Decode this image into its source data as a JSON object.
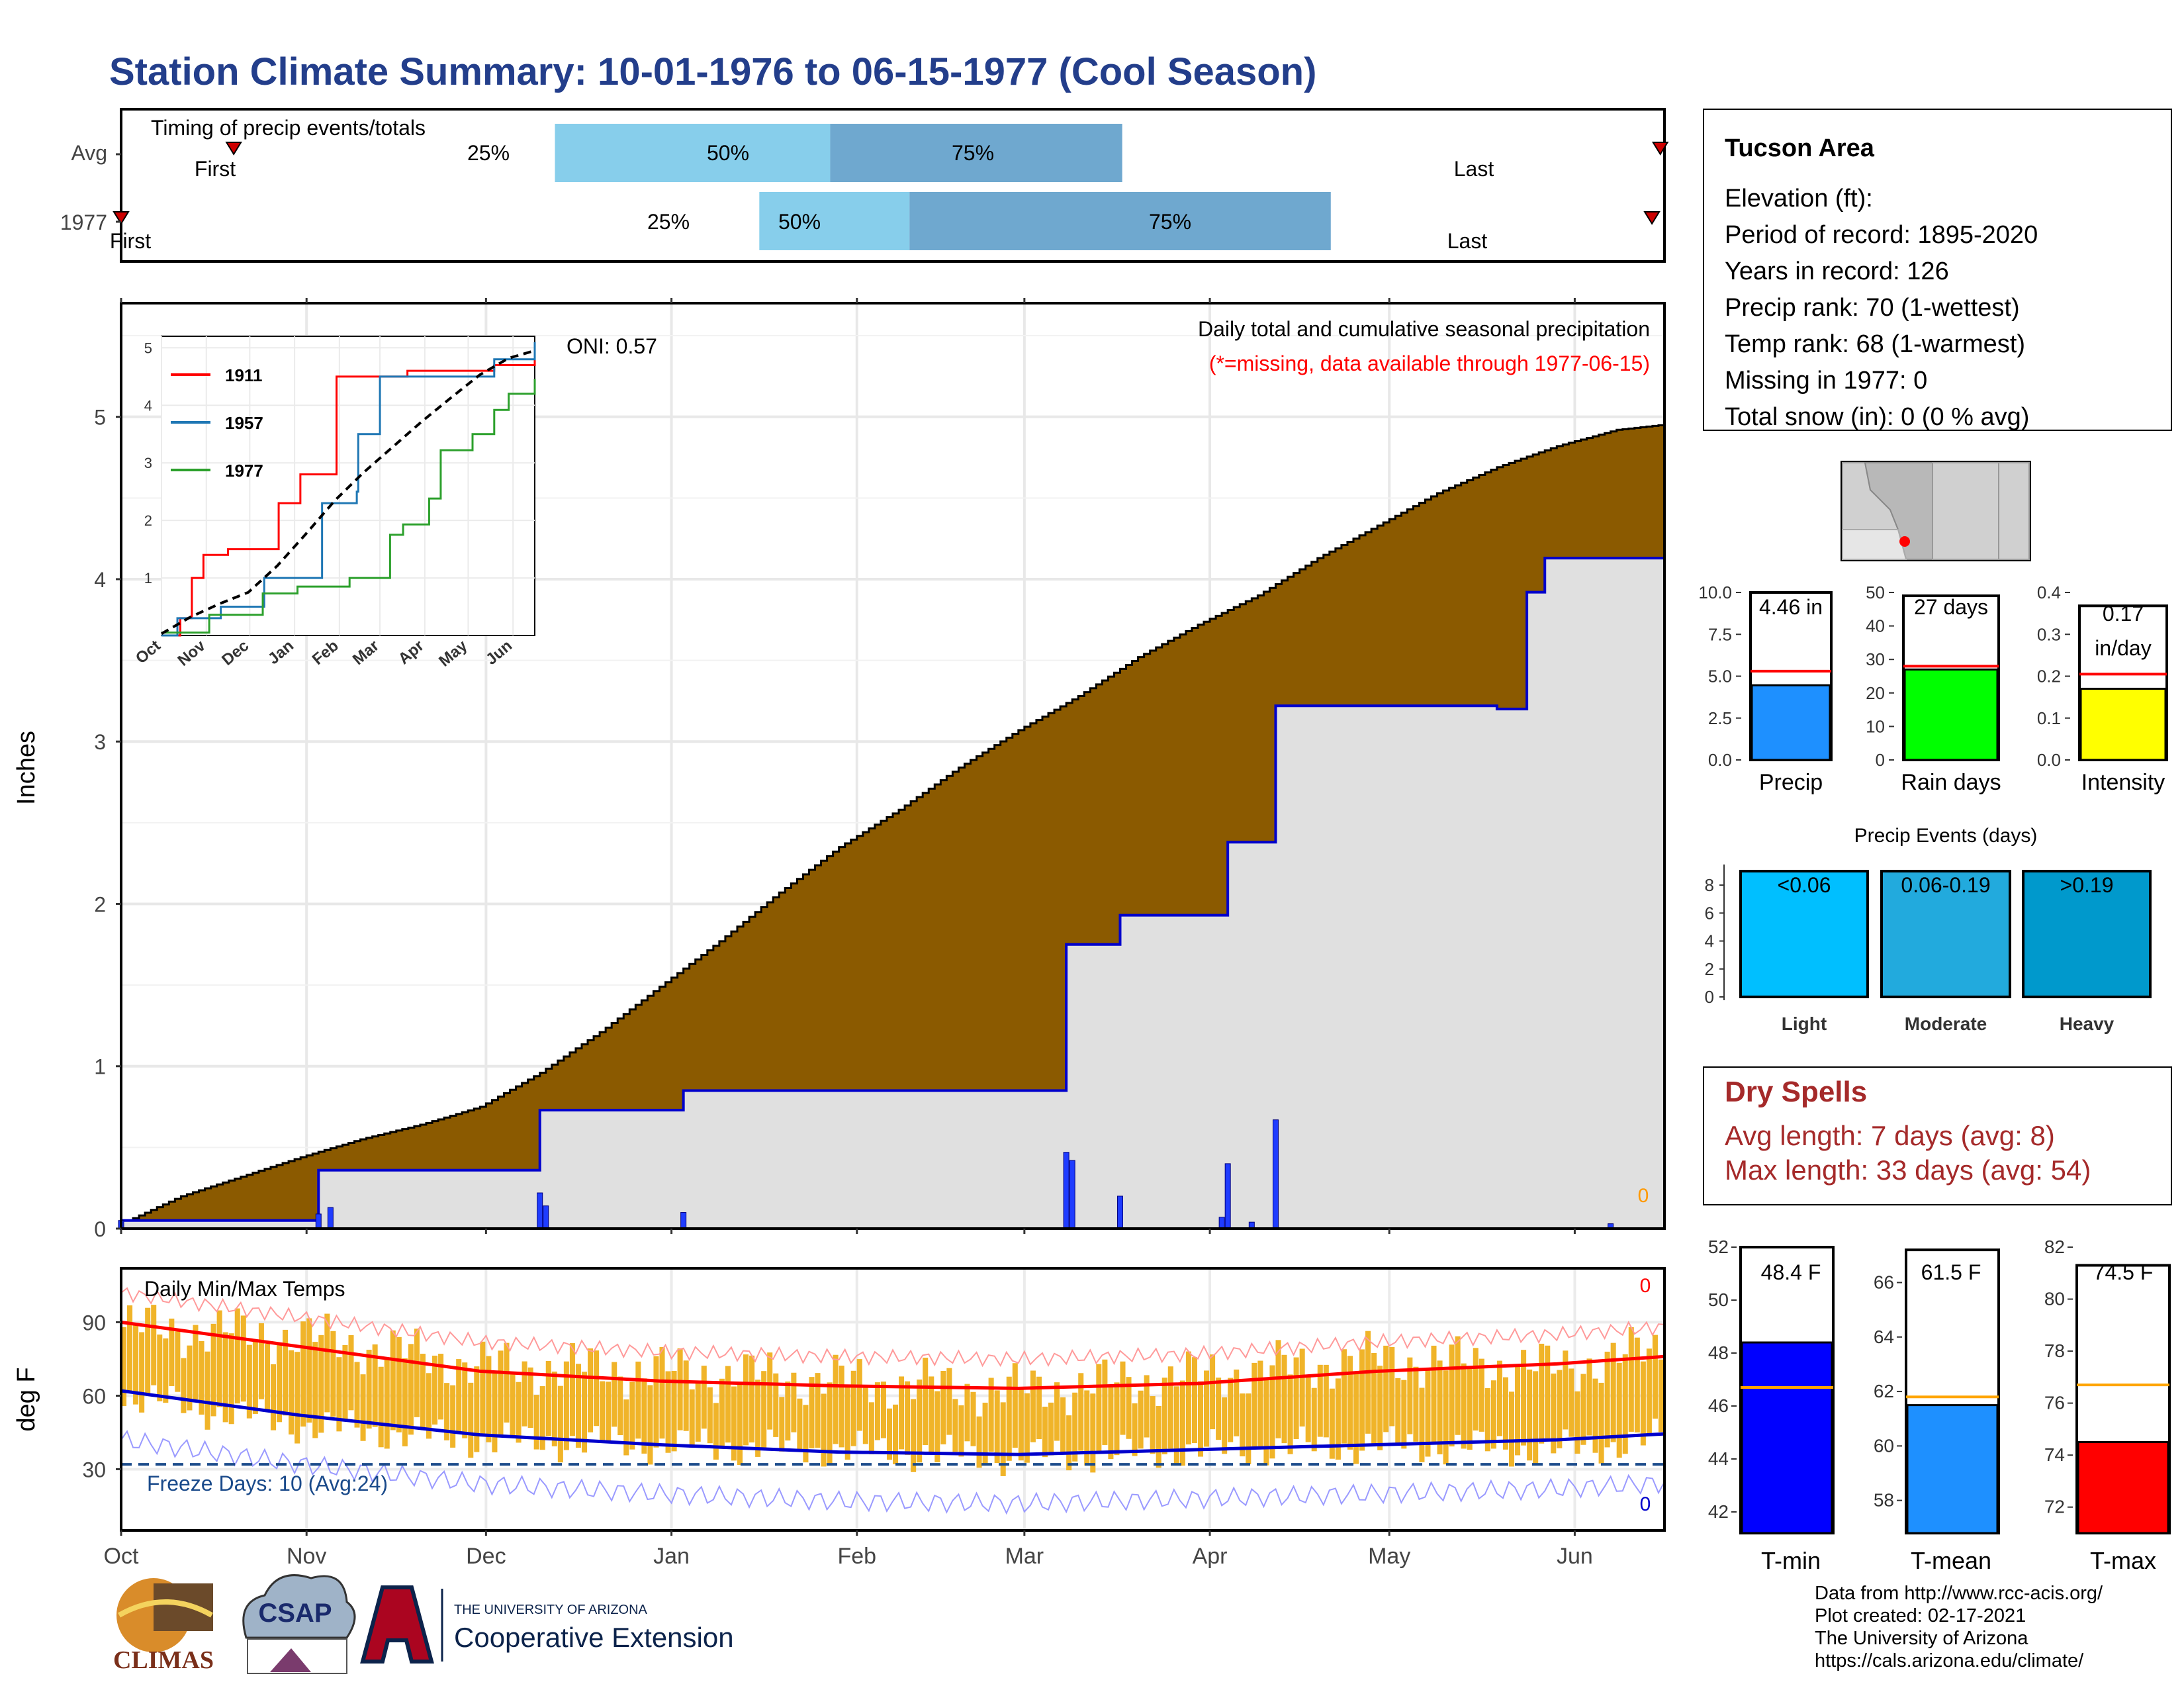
{
  "title": "Station Climate Summary: 10-01-1976 to 06-15-1977 (Cool Season)",
  "colors": {
    "title": "#233e8b",
    "brown": "#8b5a00",
    "grey_fill": "#e0e0e0",
    "line_blue": "#0000cc",
    "bar_blue": "#1f3cff",
    "light_blue": "#87ceeb",
    "mid_blue": "#6fa8cf",
    "orange": "#f0b429",
    "red": "#ff0000",
    "dry_red": "#a52a2a",
    "missing_red": "#ff0000"
  },
  "timing": {
    "label": "Timing of precip events/totals",
    "rows": [
      {
        "name": "Avg",
        "first": "First",
        "last": "Last",
        "p25": "25%",
        "p50": "50%",
        "p75": "75%"
      },
      {
        "name": "1977",
        "first": "First",
        "last": "Last",
        "p25": "25%",
        "p50": "50%",
        "p75": "75%"
      }
    ]
  },
  "precip_panel": {
    "ylabel": "Inches",
    "heading": "Daily total and cumulative seasonal precipitation",
    "missing_note": "(*=missing, data available through 1977-06-15)",
    "oni": "ONI: 0.57",
    "missing_count": "0",
    "yticks": [
      "0",
      "1",
      "2",
      "3",
      "4",
      "5"
    ]
  },
  "inset": {
    "yticks": [
      "1",
      "2",
      "3",
      "4",
      "5"
    ],
    "xticks": [
      "Oct",
      "Nov",
      "Dec",
      "Jan",
      "Feb",
      "Mar",
      "Apr",
      "May",
      "Jun"
    ],
    "legend": [
      "1911",
      "1957",
      "1977"
    ]
  },
  "temp_panel": {
    "ylabel": "deg F",
    "heading": "Daily Min/Max Temps",
    "freeze": "Freeze Days: 10 (Avg:24)",
    "max_missing": "0",
    "min_missing": "0",
    "yticks": [
      "30",
      "60",
      "90"
    ]
  },
  "months": [
    "Oct",
    "Nov",
    "Dec",
    "Jan",
    "Feb",
    "Mar",
    "Apr",
    "May",
    "Jun"
  ],
  "info": {
    "station": "Tucson Area",
    "lines": [
      "Elevation (ft):",
      "Period of record: 1895-2020",
      "Years in record: 126",
      "Precip rank: 70 (1-wettest)",
      "Temp rank: 68 (1-warmest)",
      "Missing in 1977: 0",
      "Total snow (in): 0 (0 % avg)"
    ]
  },
  "mini_bars": {
    "precip": {
      "label": "Precip",
      "value_text": "4.46 in",
      "yticks": [
        "0.0",
        "2.5",
        "5.0",
        "7.5",
        "10.0"
      ]
    },
    "rain_days": {
      "label": "Rain days",
      "value_text": "27 days",
      "yticks": [
        "0",
        "10",
        "20",
        "30",
        "40",
        "50"
      ]
    },
    "intensity": {
      "label": "Intensity",
      "value_text": "0.17",
      "value_text2": "in/day",
      "yticks": [
        "0.0",
        "0.1",
        "0.2",
        "0.3",
        "0.4"
      ]
    }
  },
  "events": {
    "title": "Precip Events (days)",
    "yticks": [
      "0",
      "2",
      "4",
      "6",
      "8"
    ],
    "bars": [
      {
        "label": "Light",
        "range": "<0.06"
      },
      {
        "label": "Moderate",
        "range": "0.06-0.19"
      },
      {
        "label": "Heavy",
        "range": ">0.19"
      }
    ]
  },
  "dry": {
    "title": "Dry Spells",
    "avg": "Avg length: 7 days (avg: 8)",
    "max": "Max length: 33 days (avg: 54)"
  },
  "temp_bars": {
    "tmin": {
      "label": "T-min",
      "value_text": "48.4 F",
      "yticks": [
        "42",
        "44",
        "46",
        "48",
        "50",
        "52"
      ]
    },
    "tmean": {
      "label": "T-mean",
      "value_text": "61.5 F",
      "yticks": [
        "58",
        "60",
        "62",
        "64",
        "66"
      ]
    },
    "tmax": {
      "label": "T-max",
      "value_text": "74.5 F",
      "yticks": [
        "72",
        "74",
        "76",
        "78",
        "80",
        "82"
      ]
    }
  },
  "footer": {
    "lines": [
      "Data from http://www.rcc-acis.org/",
      "Plot created: 02-17-2021",
      "The University of Arizona",
      "https://cals.arizona.edu/climate/"
    ],
    "logo_climas": "CLIMAS",
    "logo_csap": "CSAP",
    "logo_ua_small": "THE UNIVERSITY OF ARIZONA",
    "logo_ua_big": "Cooperative Extension"
  },
  "chart_data": [
    {
      "type": "bar",
      "name": "timing",
      "categories": [
        "Avg",
        "1977"
      ],
      "xlim_days": [
        0,
        258
      ],
      "series": [
        {
          "row": "Avg",
          "first_day": 27,
          "p25_day": 104,
          "p50_day": 170,
          "p75_day": 240,
          "last_day": 369
        },
        {
          "row": "1977",
          "first_day": 0,
          "p25_day": 153,
          "p50_day": 189,
          "p75_day": 290,
          "last_day": 367
        }
      ]
    },
    {
      "type": "area",
      "name": "precip",
      "x_start": "1976-10-01",
      "ylim": [
        0,
        5.7
      ],
      "avg_cumulative": [
        [
          0,
          0.03
        ],
        [
          10,
          0.2
        ],
        [
          20,
          0.32
        ],
        [
          30,
          0.44
        ],
        [
          40,
          0.55
        ],
        [
          50,
          0.64
        ],
        [
          60,
          0.75
        ],
        [
          70,
          0.96
        ],
        [
          80,
          1.21
        ],
        [
          90,
          1.49
        ],
        [
          100,
          1.77
        ],
        [
          110,
          2.07
        ],
        [
          120,
          2.35
        ],
        [
          130,
          2.58
        ],
        [
          140,
          2.84
        ],
        [
          150,
          3.07
        ],
        [
          160,
          3.28
        ],
        [
          170,
          3.52
        ],
        [
          180,
          3.72
        ],
        [
          190,
          3.9
        ],
        [
          200,
          4.13
        ],
        [
          210,
          4.33
        ],
        [
          220,
          4.53
        ],
        [
          230,
          4.69
        ],
        [
          240,
          4.82
        ],
        [
          250,
          4.92
        ],
        [
          260,
          4.96
        ],
        [
          270,
          5.03
        ],
        [
          280,
          5.07
        ],
        [
          290,
          5.12
        ],
        [
          300,
          5.17
        ],
        [
          310,
          5.22
        ],
        [
          320,
          5.26
        ],
        [
          330,
          5.27
        ],
        [
          338,
          5.27
        ]
      ],
      "cumulative_1977": [
        [
          0,
          0.05
        ],
        [
          33,
          0.05
        ],
        [
          33,
          0.2
        ],
        [
          33,
          0.36
        ],
        [
          70,
          0.36
        ],
        [
          70,
          0.6
        ],
        [
          70,
          0.73
        ],
        [
          94,
          0.73
        ],
        [
          94,
          0.85
        ],
        [
          158,
          0.85
        ],
        [
          158,
          1.75
        ],
        [
          167,
          1.75
        ],
        [
          167,
          1.93
        ],
        [
          185,
          1.93
        ],
        [
          185,
          2.38
        ],
        [
          193,
          2.38
        ],
        [
          193,
          3.22
        ],
        [
          230,
          3.22
        ],
        [
          230,
          3.2
        ],
        [
          230,
          3.2
        ],
        [
          235,
          3.2
        ],
        [
          235,
          3.92
        ],
        [
          238,
          3.92
        ],
        [
          238,
          4.13
        ],
        [
          258,
          4.3
        ],
        [
          293,
          4.44
        ],
        [
          338,
          4.46
        ]
      ],
      "daily": [
        [
          0,
          0.05
        ],
        [
          33,
          0.09
        ],
        [
          35,
          0.13
        ],
        [
          70,
          0.22
        ],
        [
          71,
          0.14
        ],
        [
          94,
          0.1
        ],
        [
          158,
          0.47
        ],
        [
          159,
          0.42
        ],
        [
          167,
          0.2
        ],
        [
          184,
          0.07
        ],
        [
          185,
          0.4
        ],
        [
          189,
          0.04
        ],
        [
          193,
          0.67
        ],
        [
          249,
          0.03
        ],
        [
          293,
          0.03
        ],
        [
          309,
          0.07
        ],
        [
          335,
          0.02
        ],
        [
          346,
          0.06
        ],
        [
          355,
          0.27
        ],
        [
          355,
          0.44
        ],
        [
          361,
          0.06
        ]
      ]
    },
    {
      "type": "line",
      "name": "inset-cumulative",
      "xlim_days": [
        0,
        258
      ],
      "ylim": [
        0,
        5.2
      ],
      "series": [
        {
          "name": "1911",
          "points": [
            [
              0,
              0
            ],
            [
              12,
              0
            ],
            [
              13,
              0.3
            ],
            [
              20,
              0.3
            ],
            [
              21,
              1.0
            ],
            [
              28,
              1.0
            ],
            [
              29,
              1.4
            ],
            [
              45,
              1.4
            ],
            [
              46,
              1.5
            ],
            [
              80,
              1.5
            ],
            [
              81,
              2.3
            ],
            [
              95,
              2.3
            ],
            [
              96,
              2.8
            ],
            [
              120,
              2.8
            ],
            [
              121,
              4.5
            ],
            [
              150,
              4.5
            ],
            [
              170,
              4.6
            ],
            [
              230,
              4.7
            ],
            [
              258,
              4.9
            ]
          ]
        },
        {
          "name": "1957",
          "points": [
            [
              0,
              0
            ],
            [
              10,
              0
            ],
            [
              11,
              0.3
            ],
            [
              40,
              0.3
            ],
            [
              41,
              0.5
            ],
            [
              70,
              0.5
            ],
            [
              71,
              1.0
            ],
            [
              110,
              1.0
            ],
            [
              111,
              2.3
            ],
            [
              135,
              2.5
            ],
            [
              136,
              3.5
            ],
            [
              150,
              3.5
            ],
            [
              151,
              4.5
            ],
            [
              200,
              4.5
            ],
            [
              230,
              4.8
            ],
            [
              258,
              5.1
            ]
          ]
        },
        {
          "name": "1977",
          "points": [
            [
              0,
              0.05
            ],
            [
              33,
              0.36
            ],
            [
              70,
              0.73
            ],
            [
              94,
              0.85
            ],
            [
              130,
              1.0
            ],
            [
              158,
              1.75
            ],
            [
              167,
              1.93
            ],
            [
              185,
              2.38
            ],
            [
              193,
              3.22
            ],
            [
              215,
              3.5
            ],
            [
              230,
              3.92
            ],
            [
              240,
              4.2
            ],
            [
              258,
              4.46
            ]
          ]
        },
        {
          "name": "avg",
          "points": [
            [
              0,
              0.03
            ],
            [
              20,
              0.32
            ],
            [
              40,
              0.55
            ],
            [
              60,
              0.75
            ],
            [
              80,
              1.21
            ],
            [
              100,
              1.77
            ],
            [
              120,
              2.35
            ],
            [
              140,
              2.84
            ],
            [
              160,
              3.28
            ],
            [
              180,
              3.72
            ],
            [
              200,
              4.13
            ],
            [
              220,
              4.53
            ],
            [
              240,
              4.82
            ],
            [
              258,
              4.95
            ]
          ]
        }
      ]
    },
    {
      "type": "bar",
      "name": "temperature",
      "ylim": [
        5,
        112
      ],
      "avg_max_anchor": [
        [
          0,
          90
        ],
        [
          30,
          80
        ],
        [
          60,
          70
        ],
        [
          90,
          66
        ],
        [
          120,
          64
        ],
        [
          150,
          63
        ],
        [
          180,
          65
        ],
        [
          210,
          70
        ],
        [
          240,
          73
        ],
        [
          270,
          78
        ],
        [
          300,
          82
        ],
        [
          330,
          90
        ],
        [
          338,
          95
        ]
      ],
      "avg_min_anchor": [
        [
          0,
          62
        ],
        [
          30,
          52
        ],
        [
          60,
          44
        ],
        [
          90,
          40
        ],
        [
          120,
          37
        ],
        [
          150,
          36
        ],
        [
          180,
          38
        ],
        [
          210,
          40
        ],
        [
          240,
          42
        ],
        [
          270,
          46
        ],
        [
          300,
          52
        ],
        [
          330,
          62
        ],
        [
          338,
          67
        ]
      ],
      "obs_max_anchor": [
        [
          0,
          88
        ],
        [
          30,
          84
        ],
        [
          60,
          72
        ],
        [
          90,
          70
        ],
        [
          120,
          66
        ],
        [
          150,
          62
        ],
        [
          180,
          68
        ],
        [
          210,
          75
        ],
        [
          240,
          71
        ],
        [
          270,
          85
        ],
        [
          300,
          90
        ],
        [
          330,
          100
        ],
        [
          338,
          95
        ]
      ],
      "obs_min_anchor": [
        [
          0,
          60
        ],
        [
          30,
          48
        ],
        [
          60,
          42
        ],
        [
          90,
          40
        ],
        [
          120,
          38
        ],
        [
          150,
          35
        ],
        [
          180,
          38
        ],
        [
          210,
          40
        ],
        [
          240,
          38
        ],
        [
          270,
          46
        ],
        [
          300,
          52
        ],
        [
          330,
          64
        ],
        [
          338,
          66
        ]
      ],
      "freeze_line": 32
    },
    {
      "type": "bar",
      "name": "precip-summary",
      "categories": [
        "Precip",
        "Rain days",
        "Intensity"
      ],
      "values": [
        4.46,
        27,
        0.17
      ],
      "averages": [
        5.3,
        28,
        0.205
      ]
    },
    {
      "type": "bar",
      "name": "precip-events",
      "categories": [
        "Light",
        "Moderate",
        "Heavy"
      ],
      "values": [
        9,
        9,
        9
      ]
    },
    {
      "type": "bar",
      "name": "temp-summary",
      "categories": [
        "T-min",
        "T-mean",
        "T-max"
      ],
      "values": [
        48.4,
        61.5,
        74.5
      ],
      "averages": [
        46.7,
        61.8,
        76.7
      ]
    }
  ]
}
